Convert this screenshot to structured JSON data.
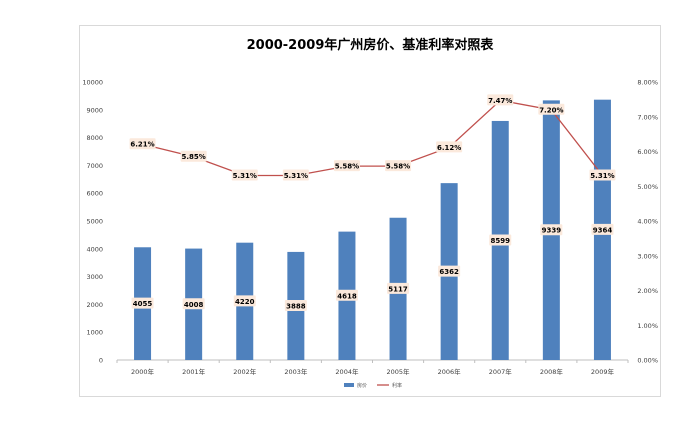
{
  "chart_data": {
    "type": "bar",
    "title": "2000-2009年广州房价、基准利率对照表",
    "categories": [
      "2000年",
      "2001年",
      "2002年",
      "2003年",
      "2004年",
      "2005年",
      "2006年",
      "2007年",
      "2008年",
      "2009年"
    ],
    "series": [
      {
        "name": "房价",
        "type": "bar",
        "axis": "left",
        "color": "#4f81bd",
        "values": [
          4055,
          4008,
          4220,
          3888,
          4618,
          5117,
          6362,
          8599,
          9339,
          9364
        ]
      },
      {
        "name": "利率",
        "type": "line",
        "axis": "right",
        "color": "#c0504d",
        "values": [
          6.21,
          5.85,
          5.31,
          5.31,
          5.58,
          5.58,
          6.12,
          7.47,
          7.2,
          5.31
        ],
        "labels": [
          "6.21%",
          "5.85%",
          "5.31%",
          "5.31%",
          "5.58%",
          "5.58%",
          "6.12%",
          "7.47%",
          "7.20%",
          "5.31%"
        ]
      }
    ],
    "ylim_left": [
      0,
      10000
    ],
    "yticks_left": [
      "0",
      "1000",
      "2000",
      "3000",
      "4000",
      "5000",
      "6000",
      "7000",
      "8000",
      "9000",
      "10000"
    ],
    "ylim_right": [
      0,
      8
    ],
    "yticks_right": [
      "0.00%",
      "1.00%",
      "2.00%",
      "3.00%",
      "4.00%",
      "5.00%",
      "6.00%",
      "7.00%",
      "8.00%"
    ],
    "grid": false,
    "legend_position": "bottom"
  }
}
